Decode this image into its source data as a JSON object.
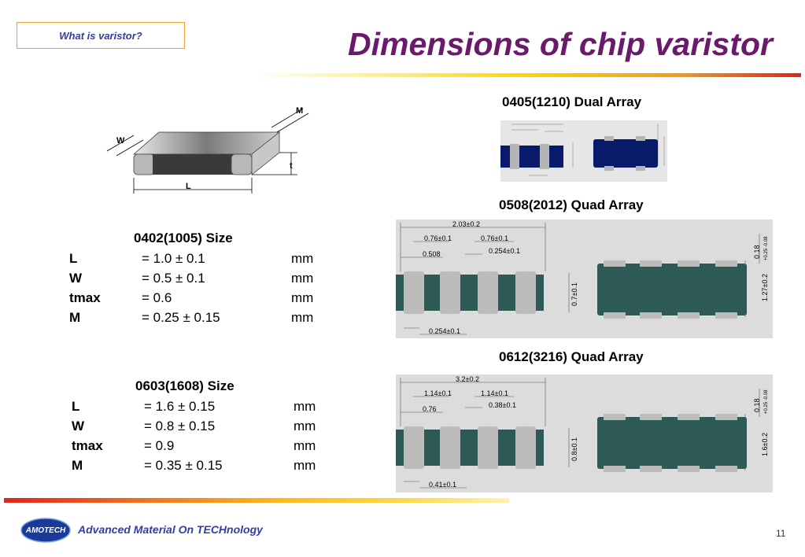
{
  "header": {
    "tag_label": "What is varistor?",
    "title": "Dimensions of chip varistor"
  },
  "chip_diagram": {
    "labels": {
      "w": "W",
      "m": "M",
      "t": "t",
      "l": "L"
    }
  },
  "size_0402": {
    "title": "0402(1005) Size",
    "rows": [
      {
        "param": "L",
        "value": "= 1.0 ± 0.1",
        "unit": "mm"
      },
      {
        "param": "W",
        "value": "= 0.5 ± 0.1",
        "unit": "mm"
      },
      {
        "param": "tmax",
        "value": "= 0.6",
        "unit": "mm"
      },
      {
        "param": "M",
        "value": "= 0.25 ± 0.15",
        "unit": "mm"
      }
    ]
  },
  "size_0603": {
    "title": "0603(1608) Size",
    "rows": [
      {
        "param": "L",
        "value": "= 1.6 ± 0.15",
        "unit": "mm"
      },
      {
        "param": "W",
        "value": "= 0.8 ± 0.15",
        "unit": "mm"
      },
      {
        "param": "tmax",
        "value": "= 0.9",
        "unit": "mm"
      },
      {
        "param": "M",
        "value": "= 0.35 ± 0.15",
        "unit": "mm"
      }
    ]
  },
  "dual_0405": {
    "title": "0405(1210) Dual Array"
  },
  "quad_0508": {
    "title": "0508(2012) Quad Array",
    "dims": {
      "overall": "2.03±0.2",
      "pitch_a": "0.76±0.1",
      "pitch_b": "0.76±0.1",
      "gap": "0.254±0.1",
      "term": "0.508",
      "bottom": "0.254±0.1",
      "height": "0.7±0.1",
      "width": "1.27±0.2",
      "thick": "0.18",
      "thick_tol": "+0.25 -0.08"
    }
  },
  "quad_0612": {
    "title": "0612(3216) Quad Array",
    "dims": {
      "overall": "3.2±0.2",
      "pitch_a": "1.14±0.1",
      "pitch_b": "1.14±0.1",
      "gap": "0.38±0.1",
      "term": "0.76",
      "bottom": "0.41±0.1",
      "height": "0.8±0.1",
      "width": "1.6±0.2",
      "thick": "0.18",
      "thick_tol": "+0.25 -0.08"
    }
  },
  "footer": {
    "logo_text": "AMOTECH",
    "tagline": "Advanced Material On TECHnology",
    "page_number": "11"
  },
  "colors": {
    "title": "#6b1a6b",
    "tagline": "#2f3ea8",
    "chip_body_green": "#2e5a55",
    "chip_body_navy": "#0a1a6a"
  }
}
